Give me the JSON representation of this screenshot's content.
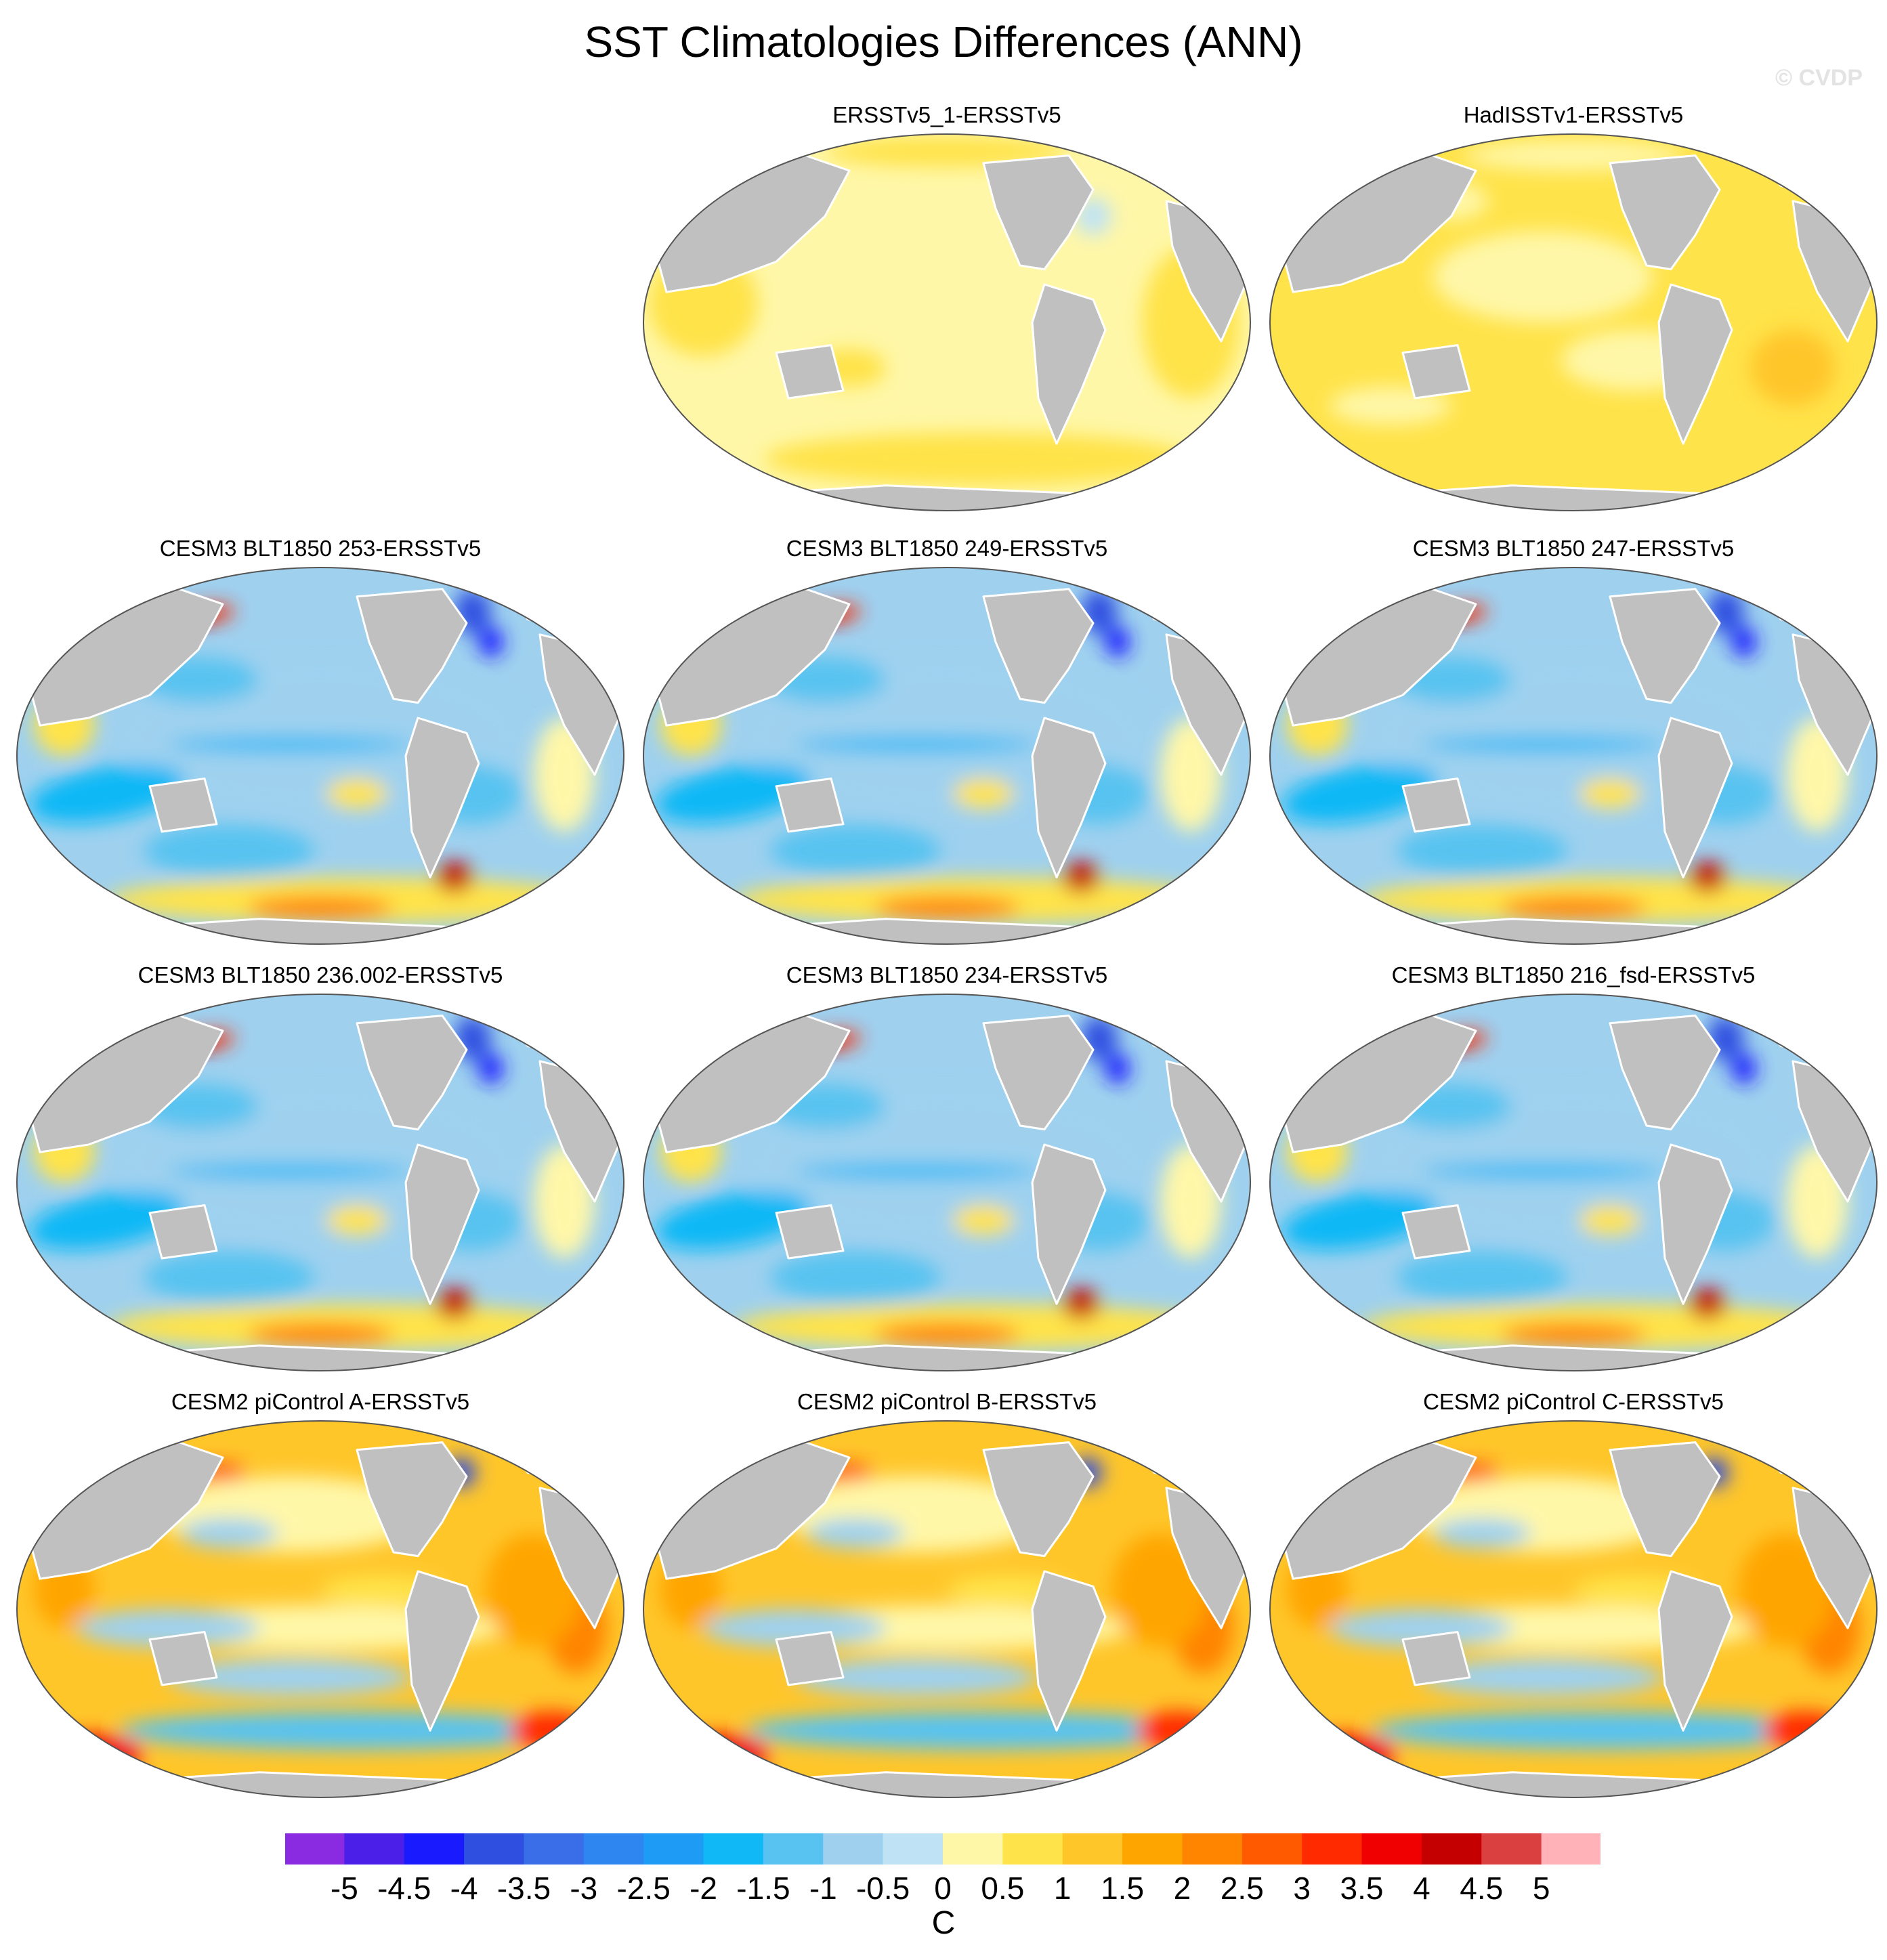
{
  "title": "SST Climatologies Differences (ANN)",
  "watermark": "© CVDP",
  "panels": [
    {
      "title": "ERSSTv5_1-ERSSTv5",
      "pattern": "obs-small"
    },
    {
      "title": "HadISSTv1-ERSSTv5",
      "pattern": "obs-warm"
    },
    {
      "title": "CESM3 BLT1850 253-ERSSTv5",
      "pattern": "cesm3"
    },
    {
      "title": "CESM3 BLT1850 249-ERSSTv5",
      "pattern": "cesm3"
    },
    {
      "title": "CESM3 BLT1850 247-ERSSTv5",
      "pattern": "cesm3"
    },
    {
      "title": "CESM3 BLT1850 236.002-ERSSTv5",
      "pattern": "cesm3"
    },
    {
      "title": "CESM3 BLT1850 234-ERSSTv5",
      "pattern": "cesm3"
    },
    {
      "title": "CESM3 BLT1850 216_fsd-ERSSTv5",
      "pattern": "cesm3"
    },
    {
      "title": "CESM2 piControl A-ERSSTv5",
      "pattern": "cesm2"
    },
    {
      "title": "CESM2 piControl B-ERSSTv5",
      "pattern": "cesm2"
    },
    {
      "title": "CESM2 piControl C-ERSSTv5",
      "pattern": "cesm2"
    }
  ],
  "colorbar": {
    "units": "C",
    "tick_labels": [
      "-5",
      "-4.5",
      "-4",
      "-3.5",
      "-3",
      "-2.5",
      "-2",
      "-1.5",
      "-1",
      "-0.5",
      "0",
      "0.5",
      "1",
      "1.5",
      "2",
      "2.5",
      "3",
      "3.5",
      "4",
      "4.5",
      "5"
    ],
    "colors": [
      "#8a2be2",
      "#4b1fe8",
      "#1a1aff",
      "#2f4fe0",
      "#3a6ee8",
      "#2e86f0",
      "#1e9cf5",
      "#10b8f5",
      "#58c3f0",
      "#9fd1ef",
      "#bfe3f5",
      "#fff7a8",
      "#ffe34a",
      "#ffc62a",
      "#ffa500",
      "#ff8400",
      "#ff5a00",
      "#ff2a00",
      "#f00000",
      "#c40000",
      "#d9403f",
      "#ffb3b8"
    ]
  },
  "colors": {
    "land": "#c0c0c0",
    "coast": "#ffffff",
    "ocean_edge": "#555555"
  }
}
